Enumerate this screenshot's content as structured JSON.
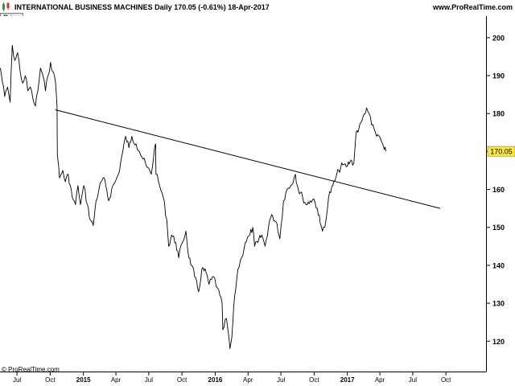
{
  "header": {
    "title": "INTERNATIONAL BUSINESS MACHINES   Daily   170.05 (-0.61%)   18-Apr-2017",
    "website": "www.ProRealTime.com",
    "price_tab": "Price"
  },
  "footer": {
    "credit": "© ProRealTime.com"
  },
  "chart_data": {
    "type": "line",
    "title": "INTERNATIONAL BUSINESS MACHINES",
    "interval": "Daily",
    "last_price": 170.05,
    "last_change": "-0.61%",
    "last_date": "18-Apr-2017",
    "last_price_label": "170.05",
    "ylim": [
      112,
      204
    ],
    "xlim": [
      "2014-05-15",
      "2018-01-20"
    ],
    "y_ticks": [
      120,
      130,
      140,
      150,
      160,
      170,
      180,
      190,
      200
    ],
    "x_ticks": [
      {
        "date": "2014-07-01",
        "label": "Jul",
        "bold": false
      },
      {
        "date": "2014-10-01",
        "label": "Oct",
        "bold": false
      },
      {
        "date": "2015-01-01",
        "label": "2015",
        "bold": true
      },
      {
        "date": "2015-04-01",
        "label": "Apr",
        "bold": false
      },
      {
        "date": "2015-07-01",
        "label": "Jul",
        "bold": false
      },
      {
        "date": "2015-10-01",
        "label": "Oct",
        "bold": false
      },
      {
        "date": "2016-01-01",
        "label": "2016",
        "bold": true
      },
      {
        "date": "2016-04-01",
        "label": "Apr",
        "bold": false
      },
      {
        "date": "2016-07-01",
        "label": "Jul",
        "bold": false
      },
      {
        "date": "2016-10-01",
        "label": "Oct",
        "bold": false
      },
      {
        "date": "2017-01-01",
        "label": "2017",
        "bold": true
      },
      {
        "date": "2017-04-01",
        "label": "Apr",
        "bold": false
      },
      {
        "date": "2017-07-01",
        "label": "Jul",
        "bold": false
      },
      {
        "date": "2017-10-01",
        "label": "Oct",
        "bold": false
      }
    ],
    "grid": false,
    "series": [
      {
        "points": [
          [
            "2014-05-16",
            192.0
          ],
          [
            "2014-05-28",
            184.5
          ],
          [
            "2014-06-05",
            187.0
          ],
          [
            "2014-06-12",
            183.0
          ],
          [
            "2014-06-18",
            198.0
          ],
          [
            "2014-06-25",
            194.0
          ],
          [
            "2014-07-03",
            196.0
          ],
          [
            "2014-07-10",
            191.0
          ],
          [
            "2014-07-17",
            188.0
          ],
          [
            "2014-07-24",
            190.0
          ],
          [
            "2014-07-31",
            186.0
          ],
          [
            "2014-08-07",
            187.0
          ],
          [
            "2014-08-14",
            184.0
          ],
          [
            "2014-08-21",
            182.0
          ],
          [
            "2014-08-28",
            186.0
          ],
          [
            "2014-09-04",
            192.0
          ],
          [
            "2014-09-11",
            190.0
          ],
          [
            "2014-09-18",
            186.0
          ],
          [
            "2014-09-25",
            190.0
          ],
          [
            "2014-10-02",
            193.5
          ],
          [
            "2014-10-09",
            191.0
          ],
          [
            "2014-10-16",
            188.0
          ],
          [
            "2014-10-20",
            182.0
          ],
          [
            "2014-10-21",
            169.0
          ],
          [
            "2014-10-27",
            163.0
          ],
          [
            "2014-11-05",
            165.0
          ],
          [
            "2014-11-12",
            162.0
          ],
          [
            "2014-11-20",
            164.0
          ],
          [
            "2014-12-01",
            158.0
          ],
          [
            "2014-12-10",
            156.0
          ],
          [
            "2014-12-17",
            161.0
          ],
          [
            "2014-12-24",
            156.0
          ],
          [
            "2015-01-02",
            161.0
          ],
          [
            "2015-01-12",
            156.0
          ],
          [
            "2015-01-20",
            152.0
          ],
          [
            "2015-01-28",
            150.5
          ],
          [
            "2015-02-05",
            157.0
          ],
          [
            "2015-02-13",
            160.0
          ],
          [
            "2015-02-24",
            163.0
          ],
          [
            "2015-03-04",
            161.0
          ],
          [
            "2015-03-12",
            157.0
          ],
          [
            "2015-03-20",
            160.0
          ],
          [
            "2015-03-30",
            162.0
          ],
          [
            "2015-04-08",
            164.0
          ],
          [
            "2015-04-20",
            170.0
          ],
          [
            "2015-04-28",
            174.0
          ],
          [
            "2015-05-07",
            171.0
          ],
          [
            "2015-05-15",
            174.0
          ],
          [
            "2015-05-27",
            172.0
          ],
          [
            "2015-06-05",
            170.0
          ],
          [
            "2015-06-15",
            168.0
          ],
          [
            "2015-06-25",
            166.0
          ],
          [
            "2015-07-08",
            164.0
          ],
          [
            "2015-07-16",
            170.0
          ],
          [
            "2015-07-20",
            172.0
          ],
          [
            "2015-07-21",
            164.0
          ],
          [
            "2015-07-31",
            161.0
          ],
          [
            "2015-08-10",
            158.0
          ],
          [
            "2015-08-20",
            152.0
          ],
          [
            "2015-08-25",
            145.0
          ],
          [
            "2015-09-02",
            148.0
          ],
          [
            "2015-09-14",
            146.0
          ],
          [
            "2015-09-22",
            142.0
          ],
          [
            "2015-10-02",
            146.0
          ],
          [
            "2015-10-12",
            149.0
          ],
          [
            "2015-10-20",
            142.0
          ],
          [
            "2015-10-28",
            140.0
          ],
          [
            "2015-11-05",
            137.0
          ],
          [
            "2015-11-16",
            133.0
          ],
          [
            "2015-11-25",
            139.0
          ],
          [
            "2015-12-07",
            138.0
          ],
          [
            "2015-12-15",
            135.0
          ],
          [
            "2015-12-28",
            137.0
          ],
          [
            "2016-01-07",
            134.0
          ],
          [
            "2016-01-14",
            132.0
          ],
          [
            "2016-01-20",
            130.0
          ],
          [
            "2016-01-22",
            123.0
          ],
          [
            "2016-02-01",
            126.0
          ],
          [
            "2016-02-11",
            118.0
          ],
          [
            "2016-02-16",
            121.0
          ],
          [
            "2016-02-24",
            132.0
          ],
          [
            "2016-03-04",
            139.0
          ],
          [
            "2016-03-14",
            142.0
          ],
          [
            "2016-03-24",
            146.0
          ],
          [
            "2016-04-06",
            148.0
          ],
          [
            "2016-04-14",
            150.0
          ],
          [
            "2016-04-19",
            145.0
          ],
          [
            "2016-04-28",
            146.0
          ],
          [
            "2016-05-09",
            148.0
          ],
          [
            "2016-05-18",
            145.0
          ],
          [
            "2016-05-31",
            152.0
          ],
          [
            "2016-06-08",
            153.0
          ],
          [
            "2016-06-20",
            151.0
          ],
          [
            "2016-06-28",
            147.0
          ],
          [
            "2016-07-08",
            157.0
          ],
          [
            "2016-07-18",
            160.0
          ],
          [
            "2016-07-28",
            161.0
          ],
          [
            "2016-08-10",
            164.0
          ],
          [
            "2016-08-18",
            160.0
          ],
          [
            "2016-08-30",
            158.0
          ],
          [
            "2016-09-09",
            156.0
          ],
          [
            "2016-09-20",
            157.0
          ],
          [
            "2016-09-30",
            157.5
          ],
          [
            "2016-10-10",
            155.0
          ],
          [
            "2016-10-18",
            151.0
          ],
          [
            "2016-10-24",
            149.0
          ],
          [
            "2016-11-03",
            152.0
          ],
          [
            "2016-11-10",
            158.0
          ],
          [
            "2016-11-22",
            161.0
          ],
          [
            "2016-11-30",
            163.0
          ],
          [
            "2016-12-08",
            165.0
          ],
          [
            "2016-12-19",
            166.5
          ],
          [
            "2016-12-29",
            166.0
          ],
          [
            "2017-01-09",
            167.5
          ],
          [
            "2017-01-19",
            167.0
          ],
          [
            "2017-01-25",
            175.0
          ],
          [
            "2017-02-02",
            176.0
          ],
          [
            "2017-02-10",
            178.0
          ],
          [
            "2017-02-17",
            180.0
          ],
          [
            "2017-02-23",
            181.5
          ],
          [
            "2017-03-02",
            180.0
          ],
          [
            "2017-03-09",
            177.0
          ],
          [
            "2017-03-16",
            176.0
          ],
          [
            "2017-03-23",
            174.0
          ],
          [
            "2017-03-31",
            174.0
          ],
          [
            "2017-04-06",
            172.5
          ],
          [
            "2017-04-13",
            170.5
          ],
          [
            "2017-04-18",
            170.05
          ]
        ]
      }
    ],
    "trendline": {
      "start": [
        "2014-10-15",
        181.0
      ],
      "end": [
        "2017-09-15",
        155.0
      ]
    }
  },
  "colors": {
    "price_line": "#000000",
    "trendline": "#000000",
    "axis": "#000000",
    "background": "#ffffff",
    "price_tag": "#ffe94a"
  }
}
